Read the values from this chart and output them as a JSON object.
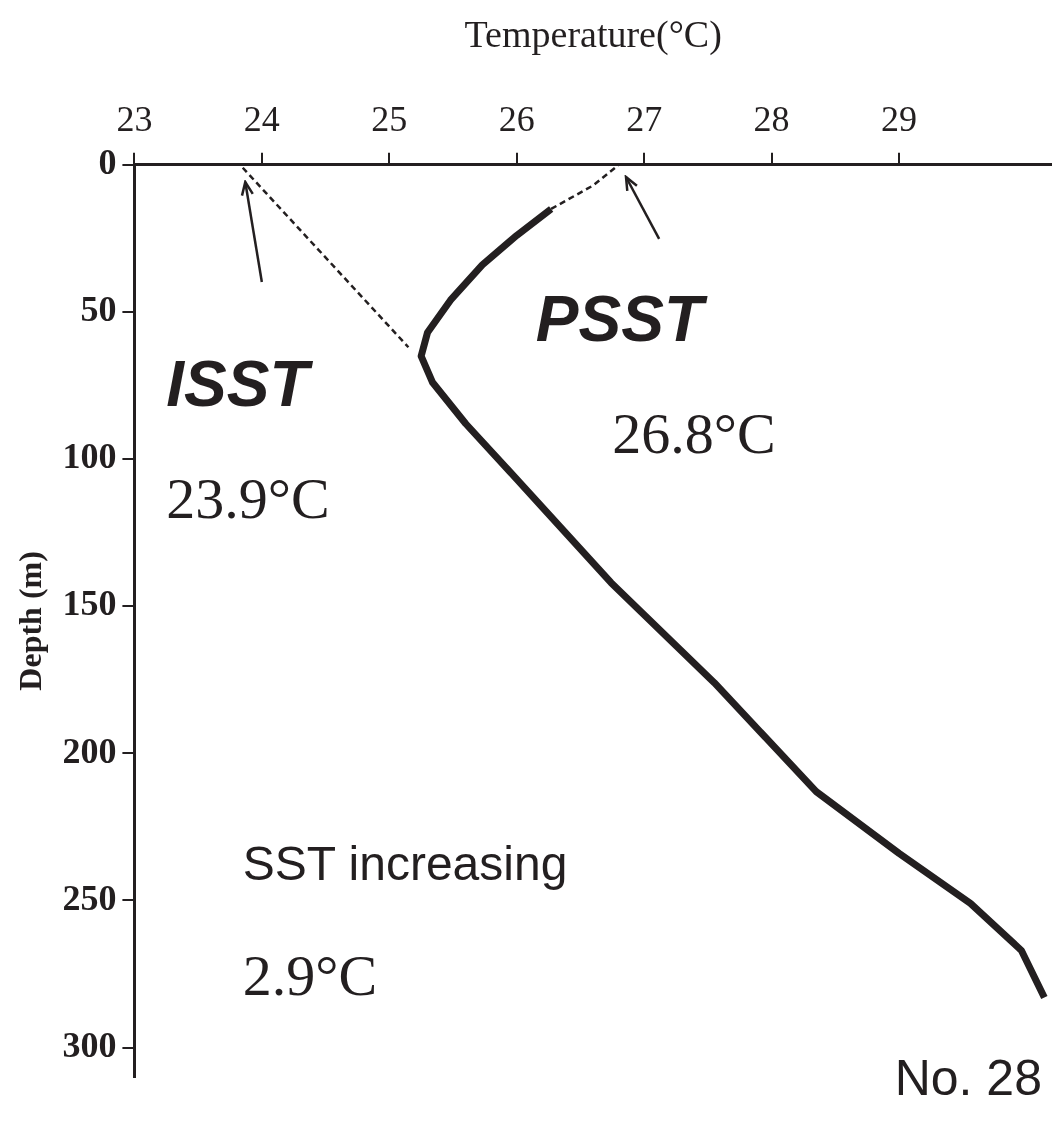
{
  "chart_data": {
    "type": "line",
    "xlabel": "Temperature(°C)",
    "ylabel": "Depth (m)",
    "xlim": [
      23,
      30.2
    ],
    "xticks": [
      23,
      24,
      25,
      26,
      27,
      28,
      29
    ],
    "ylim": [
      310,
      0
    ],
    "yticks": [
      0,
      50,
      100,
      150,
      200,
      250,
      300
    ],
    "grid": false,
    "legend": false,
    "marker": "none",
    "series": [
      {
        "color": "#231f20",
        "x": [
          26.27,
          26.0,
          25.73,
          25.48,
          25.3,
          25.25,
          25.34,
          25.6,
          25.94,
          26.74,
          27.55,
          28.35,
          29.0,
          29.56,
          29.96,
          30.14
        ],
        "values": [
          15,
          24,
          34,
          46,
          57,
          65,
          74,
          88,
          104,
          142,
          176,
          213,
          234,
          251,
          267,
          283
        ]
      },
      {
        "color": "#231f20",
        "line_style": "dashed",
        "x": [
          23.85,
          25.15
        ],
        "values": [
          1,
          62
        ]
      },
      {
        "color": "#231f20",
        "line_style": "dashed",
        "x": [
          26.27,
          26.6,
          26.8
        ],
        "values": [
          15,
          7,
          0
        ]
      }
    ],
    "annotations": [
      "ISST",
      "23.9°C",
      "PSST",
      "26.8°C",
      "SST increasing",
      "2.9°C",
      "No. 28"
    ]
  }
}
